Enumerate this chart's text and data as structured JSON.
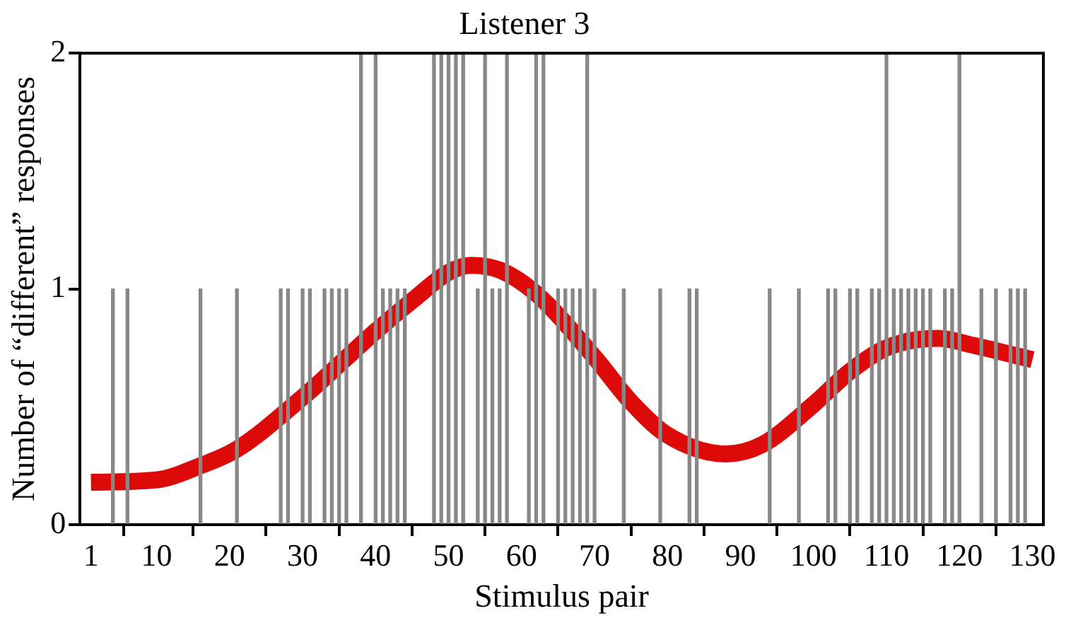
{
  "chart_data": {
    "type": "bar",
    "title": "Listener 3",
    "xlabel": "Stimulus pair",
    "ylabel": "Number of “different” responses",
    "xlim": [
      -0.5,
      131.5
    ],
    "xticks": [
      1,
      10,
      20,
      30,
      40,
      50,
      60,
      70,
      80,
      90,
      100,
      110,
      120,
      130
    ],
    "ylim": [
      0,
      2
    ],
    "yticks": [
      0,
      1,
      2
    ],
    "grid": false,
    "legend": false,
    "series": [
      {
        "color": "#888888",
        "x": [
          4,
          6,
          16,
          21,
          27,
          28,
          30,
          31,
          33,
          34,
          35,
          36,
          38,
          40,
          41,
          42,
          43,
          44,
          48,
          49,
          50,
          51,
          52,
          54,
          55,
          56,
          57,
          58,
          61,
          62,
          63,
          65,
          66,
          67,
          68,
          69,
          70,
          74,
          79,
          83,
          84,
          94,
          98,
          102,
          103,
          105,
          106,
          108,
          109,
          110,
          111,
          112,
          113,
          114,
          115,
          116,
          118,
          119,
          120,
          123,
          125,
          127,
          128,
          129
        ],
        "values": [
          1,
          1,
          1,
          1,
          1,
          1,
          1,
          1,
          1,
          1,
          1,
          1,
          2,
          2,
          1,
          1,
          1,
          1,
          2,
          2,
          2,
          2,
          2,
          1,
          2,
          1,
          1,
          2,
          1,
          2,
          2,
          1,
          1,
          1,
          1,
          2,
          1,
          1,
          1,
          1,
          1,
          1,
          1,
          1,
          1,
          1,
          1,
          1,
          1,
          2,
          1,
          1,
          1,
          1,
          1,
          1,
          1,
          1,
          2,
          1,
          1,
          1,
          1,
          1
        ]
      },
      {
        "type": "line",
        "color": "#dd0a0a",
        "x": [
          1,
          10,
          16,
          21,
          30,
          40,
          45,
          50,
          53,
          57,
          62,
          70,
          75,
          80,
          88,
          93,
          100,
          105,
          110,
          117,
          122,
          130
        ],
        "values": [
          0.18,
          0.19,
          0.25,
          0.32,
          0.54,
          0.82,
          0.95,
          1.07,
          1.1,
          1.08,
          0.98,
          0.71,
          0.52,
          0.38,
          0.3,
          0.34,
          0.51,
          0.65,
          0.75,
          0.79,
          0.76,
          0.7
        ]
      }
    ]
  }
}
